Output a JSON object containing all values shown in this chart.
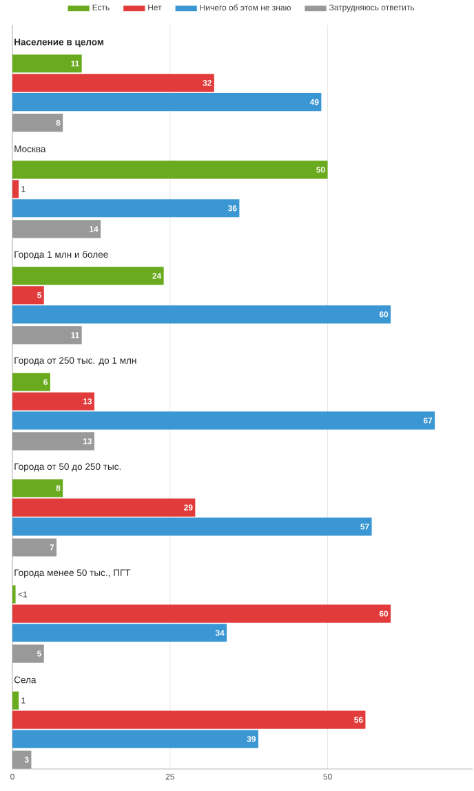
{
  "chart_data": {
    "type": "bar",
    "orientation": "horizontal",
    "categories": [
      "Население в целом",
      "Москва",
      "Города 1 млн и более",
      "Города от 250 тыс. до 1 млн",
      "Города от 50 до 250 тыс.",
      "Города менее 50 тыс., ПГТ",
      "Села"
    ],
    "series": [
      {
        "name": "Есть",
        "color": "#6aaa1e",
        "values": [
          11,
          50,
          24,
          6,
          8,
          0.5,
          1
        ],
        "value_labels": [
          "11",
          "50",
          "24",
          "6",
          "8",
          "<1",
          "1"
        ]
      },
      {
        "name": "Нет",
        "color": "#e23b3b",
        "values": [
          32,
          1,
          5,
          13,
          29,
          60,
          56
        ],
        "value_labels": [
          "32",
          "1",
          "5",
          "13",
          "29",
          "60",
          "56"
        ]
      },
      {
        "name": "Ничего об этом не знаю",
        "color": "#3b97d3",
        "values": [
          49,
          36,
          60,
          67,
          57,
          34,
          39
        ],
        "value_labels": [
          "49",
          "36",
          "60",
          "67",
          "57",
          "34",
          "39"
        ]
      },
      {
        "name": "Затрудняюсь ответить",
        "color": "#999999",
        "values": [
          8,
          14,
          11,
          13,
          7,
          5,
          3
        ],
        "value_labels": [
          "8",
          "14",
          "11",
          "13",
          "7",
          "5",
          "3"
        ]
      }
    ],
    "xlim": [
      0,
      73
    ],
    "xticks": [
      0,
      25,
      50
    ],
    "grid": "x",
    "legend": "top"
  }
}
